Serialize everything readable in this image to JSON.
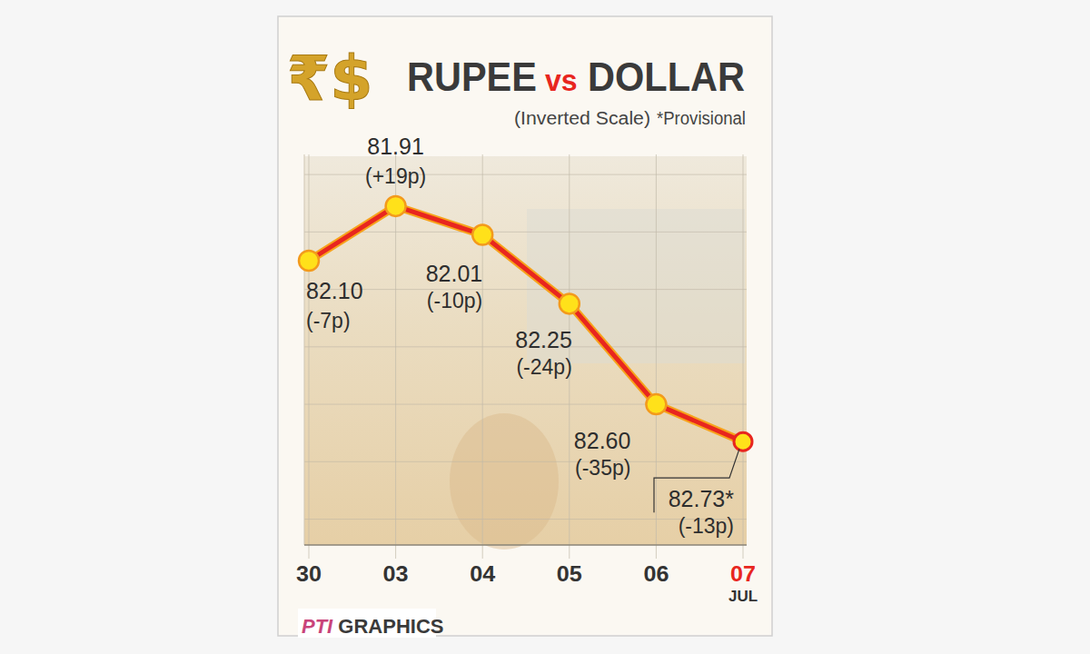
{
  "chart_data": {
    "type": "line",
    "title": "RUPEE vs DOLLAR",
    "header_symbols": "₹$",
    "subtitle": "(Inverted Scale)",
    "note": "*Provisional",
    "categories": [
      "30",
      "03",
      "04",
      "05",
      "06",
      "07"
    ],
    "month_label": "JUL",
    "values": [
      82.1,
      81.91,
      82.01,
      82.25,
      82.6,
      82.73
    ],
    "value_labels": [
      "82.10",
      "81.91",
      "82.01",
      "82.25",
      "82.60",
      "82.73*"
    ],
    "annotations": [
      "(-7p)",
      "(+19p)",
      "(-10p)",
      "(-24p)",
      "(-35p)",
      "(-13p)"
    ],
    "color": "#e8261f",
    "marker": "circle",
    "data_labels": true,
    "ylim": [
      83.09,
      81.73
    ],
    "yticks": [
      83.0,
      82.8,
      82.6,
      82.4,
      82.2,
      82.0,
      81.8
    ],
    "grid": true,
    "tick_labels": "x",
    "source": "PTI GRAPHICS"
  }
}
